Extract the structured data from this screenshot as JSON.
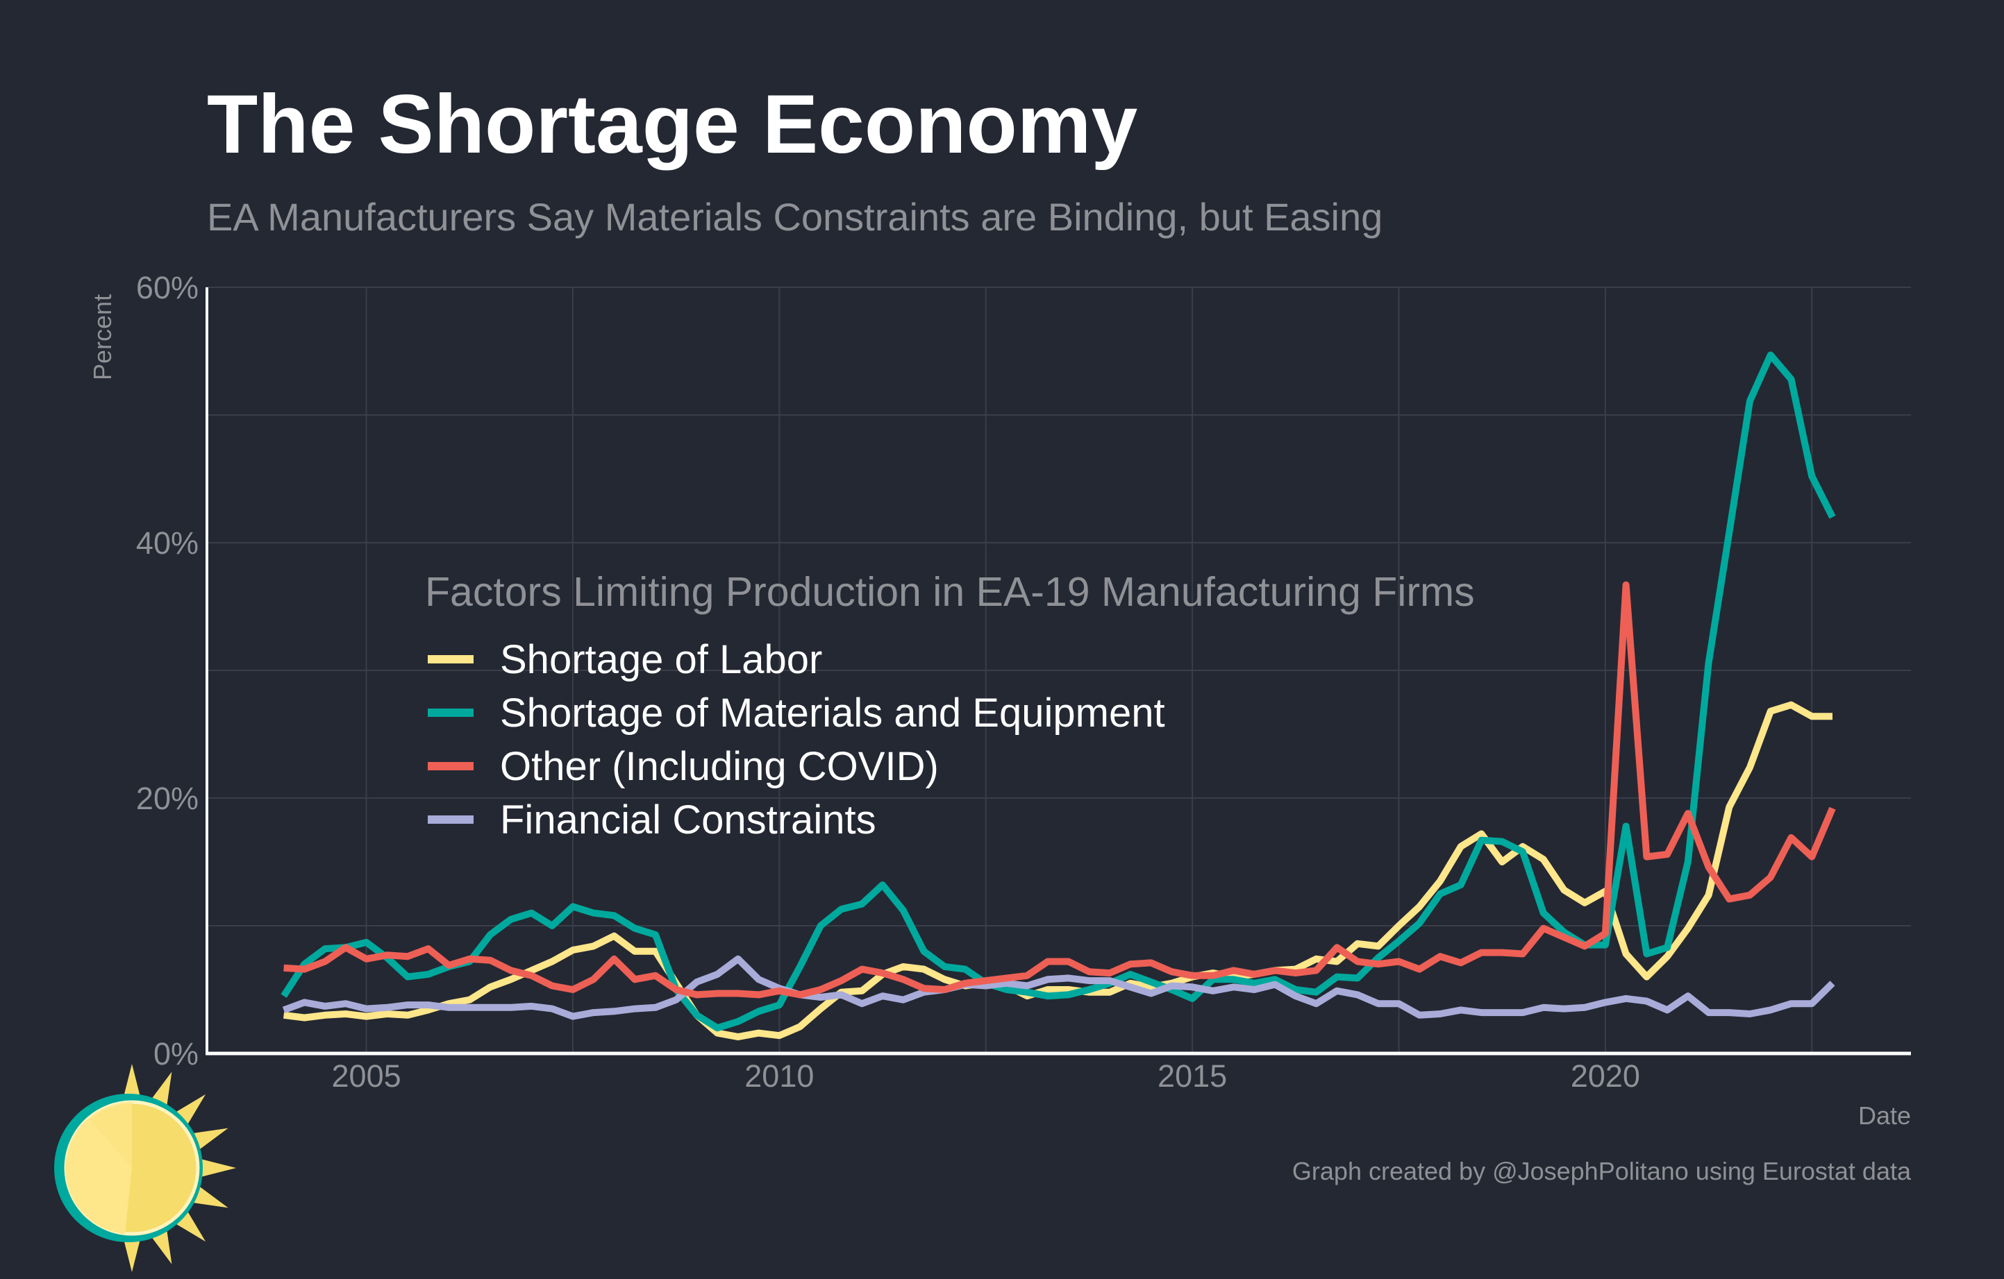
{
  "chart_data": {
    "type": "line",
    "title": "The Shortage Economy",
    "subtitle": "EA Manufacturers Say Materials Constraints are Binding, but Easing",
    "xlabel": "Date",
    "ylabel": "Percent",
    "xlim": [
      2003.07,
      2023.7
    ],
    "ylim": [
      0,
      60
    ],
    "x_ticks": [
      {
        "value": 2005,
        "label": "2005"
      },
      {
        "value": 2010,
        "label": "2010"
      },
      {
        "value": 2015,
        "label": "2015"
      },
      {
        "value": 2020,
        "label": "2020"
      }
    ],
    "y_ticks": [
      {
        "value": 0,
        "label": "0%"
      },
      {
        "value": 20,
        "label": "20%"
      },
      {
        "value": 40,
        "label": "40%"
      },
      {
        "value": 60,
        "label": "60%"
      }
    ],
    "grid": true,
    "x_start": 2004,
    "x_step": 0.25,
    "legend": {
      "title": "Factors Limiting Production in EA-19 Manufacturing Firms",
      "placement": "center-left"
    },
    "series": [
      {
        "name": "Shortage of Labor",
        "color": "#fee68a",
        "values": [
          3.0,
          2.8,
          3.0,
          3.1,
          2.9,
          3.1,
          3.0,
          3.4,
          3.9,
          4.2,
          5.2,
          5.8,
          6.5,
          7.2,
          8.1,
          8.4,
          9.2,
          8.0,
          8.0,
          5.5,
          3.0,
          1.6,
          1.3,
          1.6,
          1.4,
          2.1,
          3.5,
          4.8,
          4.9,
          6.2,
          6.8,
          6.6,
          5.8,
          5.3,
          5.5,
          5.3,
          4.5,
          5.0,
          5.0,
          4.8,
          4.8,
          5.5,
          5.2,
          5.5,
          6.0,
          6.3,
          6.0,
          6.2,
          6.5,
          6.6,
          7.4,
          7.2,
          8.6,
          8.4,
          10.0,
          11.5,
          13.5,
          16.2,
          17.2,
          15.0,
          16.2,
          15.2,
          12.8,
          11.8,
          12.7,
          7.8,
          6.0,
          7.6,
          9.8,
          12.4,
          19.3,
          22.4,
          26.8,
          27.3,
          26.4,
          26.4
        ]
      },
      {
        "name": "Shortage of Materials and Equipment",
        "color": "#00a99d",
        "values": [
          4.5,
          7.0,
          8.2,
          8.3,
          8.7,
          7.5,
          6.0,
          6.2,
          6.8,
          7.2,
          9.3,
          10.5,
          11.0,
          10.0,
          11.5,
          11.0,
          10.8,
          9.8,
          9.3,
          5.0,
          3.0,
          2.0,
          2.5,
          3.3,
          3.8,
          6.8,
          10.0,
          11.3,
          11.7,
          13.2,
          11.2,
          8.0,
          6.8,
          6.6,
          5.5,
          5.0,
          4.8,
          4.5,
          4.6,
          5.0,
          5.5,
          6.2,
          5.6,
          5.0,
          4.3,
          5.8,
          5.8,
          5.5,
          5.8,
          5.0,
          4.8,
          6.0,
          5.9,
          7.5,
          8.8,
          10.2,
          12.5,
          13.2,
          16.7,
          16.6,
          15.8,
          11.0,
          9.5,
          8.5,
          8.5,
          17.8,
          7.8,
          8.3,
          15.0,
          30.6,
          40.8,
          51.1,
          54.7,
          52.8,
          45.2,
          42.0
        ]
      },
      {
        "name": "Other (Including COVID)",
        "color": "#ee6055",
        "values": [
          6.7,
          6.6,
          7.2,
          8.3,
          7.4,
          7.7,
          7.6,
          8.2,
          6.9,
          7.4,
          7.3,
          6.5,
          6.1,
          5.3,
          5.0,
          5.8,
          7.4,
          5.8,
          6.1,
          5.0,
          4.6,
          4.7,
          4.7,
          4.6,
          4.9,
          4.6,
          5.0,
          5.7,
          6.6,
          6.3,
          5.8,
          5.1,
          5.0,
          5.5,
          5.7,
          5.9,
          6.1,
          7.2,
          7.2,
          6.4,
          6.3,
          7.0,
          7.1,
          6.4,
          6.1,
          6.1,
          6.5,
          6.2,
          6.5,
          6.3,
          6.5,
          8.3,
          7.2,
          7.0,
          7.2,
          6.6,
          7.6,
          7.1,
          7.9,
          7.9,
          7.8,
          9.8,
          9.1,
          8.4,
          9.4,
          36.7,
          15.4,
          15.6,
          18.8,
          14.6,
          12.1,
          12.4,
          13.8,
          16.9,
          15.4,
          19.2
        ]
      },
      {
        "name": "Financial Constraints",
        "color": "#a9acd9",
        "values": [
          3.4,
          4.0,
          3.7,
          3.9,
          3.5,
          3.6,
          3.8,
          3.8,
          3.6,
          3.6,
          3.6,
          3.6,
          3.7,
          3.5,
          2.9,
          3.2,
          3.3,
          3.5,
          3.6,
          4.2,
          5.6,
          6.2,
          7.4,
          5.8,
          5.1,
          4.6,
          4.4,
          4.6,
          3.9,
          4.5,
          4.2,
          4.8,
          5.0,
          5.4,
          5.3,
          5.5,
          5.3,
          5.8,
          5.9,
          5.7,
          5.7,
          5.2,
          4.7,
          5.3,
          5.2,
          4.9,
          5.2,
          5.0,
          5.4,
          4.5,
          3.9,
          4.9,
          4.6,
          3.9,
          3.9,
          3.0,
          3.1,
          3.4,
          3.2,
          3.2,
          3.2,
          3.6,
          3.5,
          3.6,
          4.0,
          4.3,
          4.1,
          3.4,
          4.5,
          3.2,
          3.2,
          3.1,
          3.4,
          3.9,
          3.9,
          5.5
        ]
      }
    ],
    "credit": "Graph created by @JosephPolitano using Eurostat data"
  },
  "colors": {
    "background": "#242833",
    "grid": "#3a3e48",
    "axis": "#ffffff",
    "sun": "#f6dc6b",
    "sun_ring": "#00a99d"
  }
}
